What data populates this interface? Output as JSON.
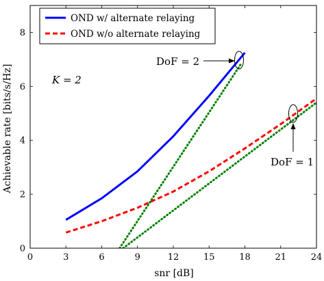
{
  "chart_data": {
    "type": "line",
    "xlabel": "snr [dB]",
    "ylabel": "Achievable rate [bits/s/Hz]",
    "xlim": [
      0,
      24
    ],
    "ylim": [
      0,
      9
    ],
    "xticks": [
      0,
      3,
      6,
      9,
      12,
      15,
      18,
      21,
      24
    ],
    "yticks": [
      0,
      2,
      4,
      6,
      8
    ],
    "grid": false,
    "legend_position": "top-left",
    "annotations": {
      "k_label": "K = 2",
      "dof2_label": "DoF = 2",
      "dof1_label": "DoF = 1"
    },
    "series": [
      {
        "name": "OND w/ alternate relaying",
        "color": "#0000ff",
        "style": "solid",
        "x": [
          3,
          6,
          9,
          12,
          15,
          18
        ],
        "y": [
          1.05,
          1.85,
          2.85,
          4.15,
          5.65,
          7.25
        ]
      },
      {
        "name": "OND w/o alternate relaying",
        "color": "#ff0000",
        "style": "dashed",
        "x": [
          3,
          6,
          9,
          12,
          15,
          18,
          21,
          24
        ],
        "y": [
          0.58,
          1.0,
          1.5,
          2.1,
          2.85,
          3.7,
          4.6,
          5.55
        ]
      },
      {
        "name": "",
        "color": "#008000",
        "style": "dotted",
        "x": [
          7.5,
          17.7
        ],
        "y": [
          0,
          6.85
        ]
      },
      {
        "name": "",
        "color": "#008000",
        "style": "dotted",
        "x": [
          7.8,
          24
        ],
        "y": [
          0,
          5.4
        ]
      }
    ]
  }
}
